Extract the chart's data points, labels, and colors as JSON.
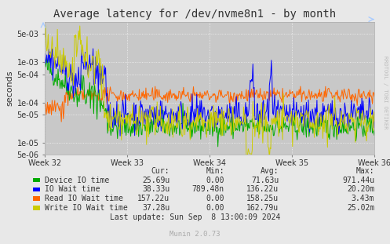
{
  "title": "Average latency for /dev/nvme8n1 - by month",
  "ylabel": "seconds",
  "xlabel_ticks": [
    "Week 32",
    "Week 33",
    "Week 34",
    "Week 35",
    "Week 36"
  ],
  "ylim_log_min": 5e-06,
  "ylim_log_max": 0.01,
  "bg_color": "#e8e8e8",
  "plot_bg_color": "#c8c8c8",
  "grid_color": "#ffffff",
  "legend": [
    {
      "label": "Device IO time",
      "color": "#00aa00"
    },
    {
      "label": "IO Wait time",
      "color": "#0000ff"
    },
    {
      "label": "Read IO Wait time",
      "color": "#ff6600"
    },
    {
      "label": "Write IO Wait time",
      "color": "#cccc00"
    }
  ],
  "stats_headers": [
    "Cur:",
    "Min:",
    "Avg:",
    "Max:"
  ],
  "stats": [
    {
      "cur": "25.69u",
      "min": "0.00",
      "avg": "71.63u",
      "max": "971.44u"
    },
    {
      "cur": "38.33u",
      "min": "789.48n",
      "avg": "136.22u",
      "max": "20.20m"
    },
    {
      "cur": "157.22u",
      "min": "0.00",
      "avg": "158.25u",
      "max": "3.43m"
    },
    {
      "cur": "37.28u",
      "min": "0.00",
      "avg": "162.79u",
      "max": "25.02m"
    }
  ],
  "footer": "Last update: Sun Sep  8 13:00:09 2024",
  "watermark": "Munin 2.0.73",
  "rrdtool_label": "RRDTOOL / TOBI OETIKER",
  "n_points": 500
}
